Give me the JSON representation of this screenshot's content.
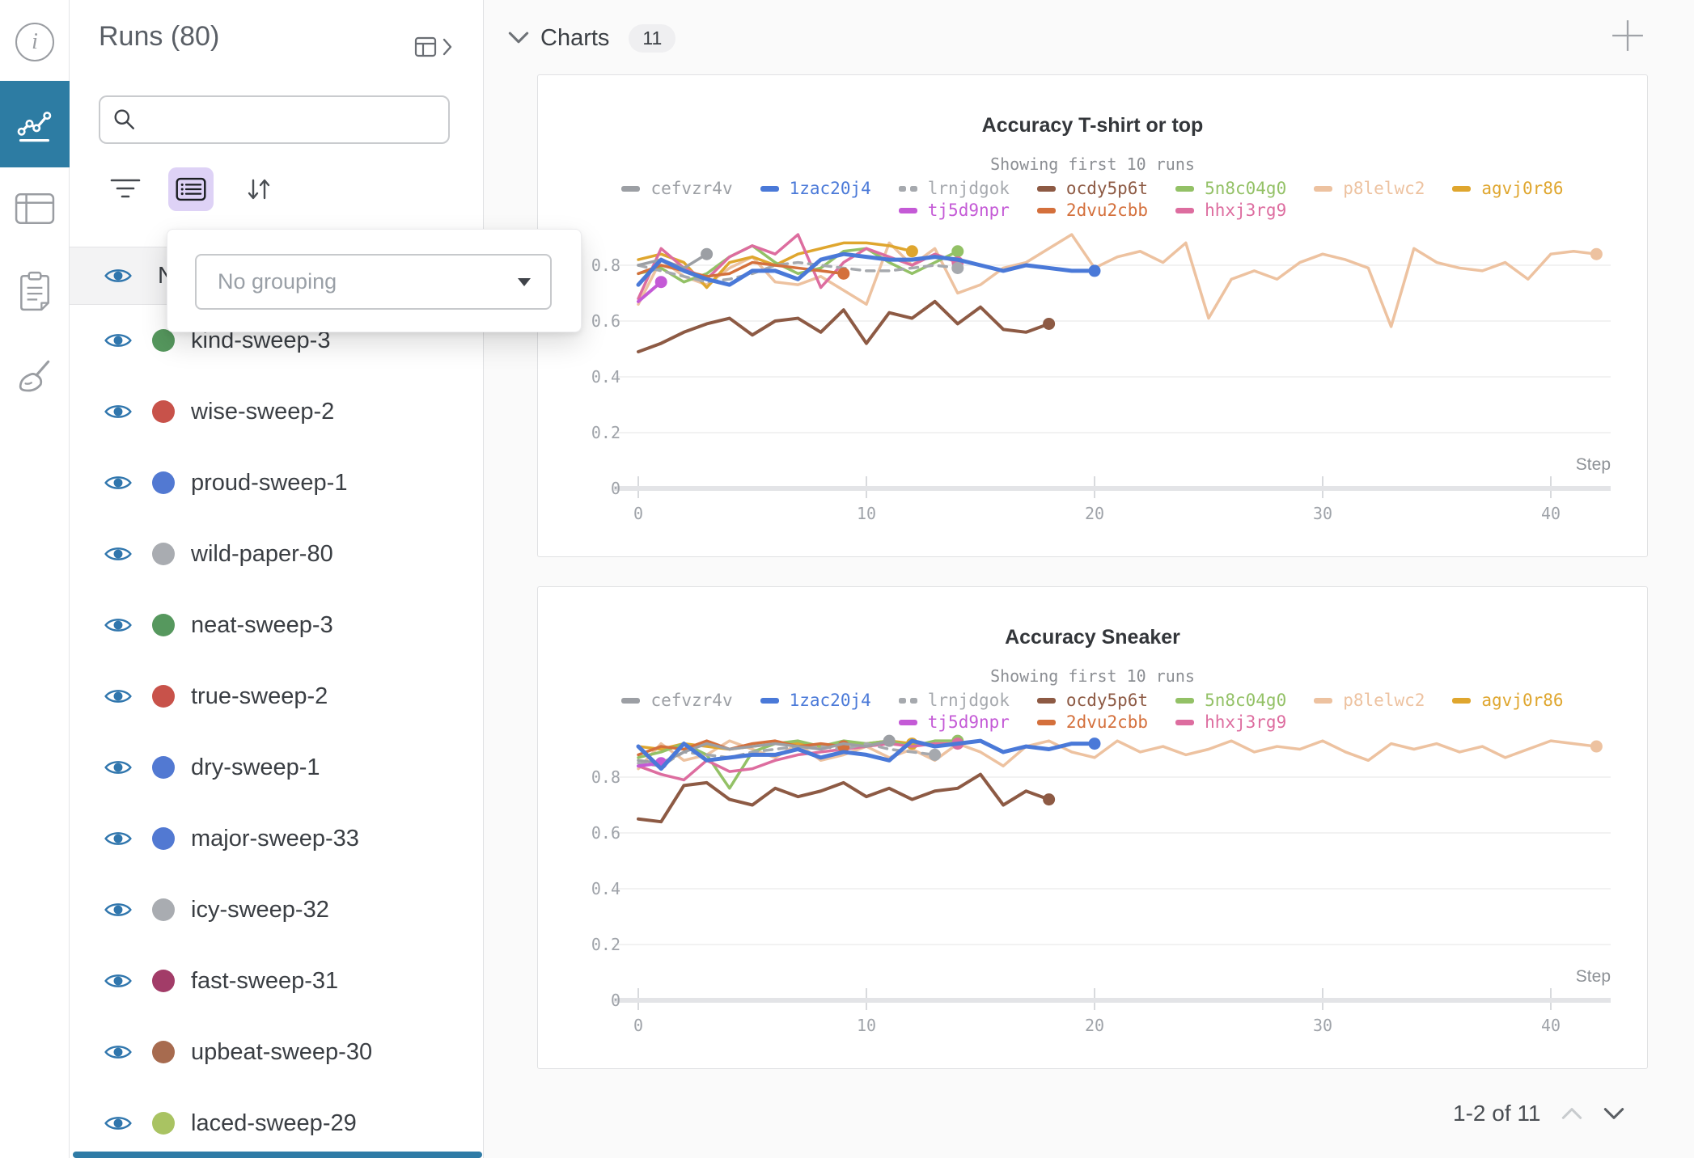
{
  "rail": {
    "active_color": "#2d7ca3",
    "icons": [
      "info-icon",
      "line-chart-icon",
      "table-icon",
      "clipboard-icon",
      "broom-icon"
    ]
  },
  "sidebar": {
    "title": "Runs (80)",
    "search": {
      "placeholder": "",
      "icon": "search-icon"
    },
    "toolbar": {
      "filter_icon": "filter-icon",
      "group_icon": "group-list-icon",
      "sort_icon": "sort-arrows-icon"
    },
    "grouping_popup": {
      "value": "No grouping",
      "caret_icon": "dropdown-caret-icon"
    },
    "header_row_label": "Name",
    "eye_color": "#3076ad",
    "runs": [
      {
        "name": "kind-sweep-3",
        "color": "#56985e"
      },
      {
        "name": "wise-sweep-2",
        "color": "#c8524a"
      },
      {
        "name": "proud-sweep-1",
        "color": "#5279d2"
      },
      {
        "name": "wild-paper-80",
        "color": "#a9acb1"
      },
      {
        "name": "neat-sweep-3",
        "color": "#56985e"
      },
      {
        "name": "true-sweep-2",
        "color": "#c8524a"
      },
      {
        "name": "dry-sweep-1",
        "color": "#5279d2"
      },
      {
        "name": "major-sweep-33",
        "color": "#5279d2"
      },
      {
        "name": "icy-sweep-32",
        "color": "#a9acb1"
      },
      {
        "name": "fast-sweep-31",
        "color": "#a23c68"
      },
      {
        "name": "upbeat-sweep-30",
        "color": "#a76b4f"
      },
      {
        "name": "laced-sweep-29",
        "color": "#a9c362"
      }
    ]
  },
  "main": {
    "section": {
      "title": "Charts",
      "count": "11"
    },
    "pagination": {
      "label": "1-2 of 11"
    }
  },
  "chart_data": [
    {
      "type": "line",
      "title": "Accuracy T-shirt or top",
      "subtitle": "Showing first 10 runs",
      "xlabel": "Step",
      "xlim": [
        0,
        42.6
      ],
      "ylim": [
        0,
        1
      ],
      "grid": true,
      "legend_position": "top",
      "yticks": [
        0,
        0.2,
        0.4,
        0.6,
        0.8
      ],
      "xticks": [
        0,
        10,
        20,
        30,
        40
      ],
      "legend_rows": [
        [
          "cefvzr4v",
          "1zac20j4",
          "lrnjdgok",
          "ocdy5p6t",
          "5n8c04g0",
          "p8lelwc2",
          "agvj0r86"
        ],
        [
          "tj5d9npr",
          "2dvu2cbb",
          "hhxj3rg9"
        ]
      ],
      "series": [
        {
          "name": "p8lelwc2",
          "color": "#edc2a0",
          "width": 3.5,
          "values": [
            0.66,
            0.82,
            0.76,
            0.73,
            0.79,
            0.83,
            0.74,
            0.73,
            0.76,
            0.71,
            0.66,
            0.88,
            0.8,
            0.86,
            0.7,
            0.73,
            0.79,
            0.81,
            0.86,
            0.91,
            0.79,
            0.83,
            0.85,
            0.81,
            0.88,
            0.61,
            0.75,
            0.78,
            0.75,
            0.81,
            0.84,
            0.82,
            0.79,
            0.58,
            0.86,
            0.81,
            0.79,
            0.78,
            0.81,
            0.75,
            0.84,
            0.85,
            0.84
          ]
        },
        {
          "name": "agvj0r86",
          "color": "#dfa62e",
          "width": 3.5,
          "values": [
            0.82,
            0.84,
            0.81,
            0.72,
            0.81,
            0.83,
            0.8,
            0.84,
            0.86,
            0.88,
            0.88,
            0.87,
            0.85
          ]
        },
        {
          "name": "5n8c04g0",
          "color": "#93c166",
          "width": 3.5,
          "values": [
            0.77,
            0.79,
            0.74,
            0.77,
            0.83,
            0.87,
            0.81,
            0.77,
            0.79,
            0.85,
            0.86,
            0.81,
            0.77,
            0.81,
            0.85
          ]
        },
        {
          "name": "hhxj3rg9",
          "color": "#dd6d9f",
          "width": 3.5,
          "values": [
            0.68,
            0.86,
            0.79,
            0.75,
            0.83,
            0.87,
            0.84,
            0.91,
            0.72,
            0.81,
            0.86,
            0.83,
            0.8,
            0.84,
            0.81
          ]
        },
        {
          "name": "lrnjdgok",
          "color": "#a6a9ae",
          "width": 3.5,
          "dashed": true,
          "values": [
            0.8,
            0.78,
            0.76,
            0.74,
            0.75,
            0.77,
            0.8,
            0.81,
            0.8,
            0.79,
            0.78,
            0.78,
            0.79,
            0.8,
            0.79
          ]
        },
        {
          "name": "2dvu2cbb",
          "color": "#d4703c",
          "width": 3.5,
          "values": [
            0.77,
            0.8,
            0.78,
            0.76,
            0.77,
            0.81,
            0.8,
            0.79,
            0.78,
            0.77
          ]
        },
        {
          "name": "cefvzr4v",
          "color": "#9c9fa4",
          "width": 3.5,
          "values": [
            0.8,
            0.82,
            0.79,
            0.84
          ]
        },
        {
          "name": "tj5d9npr",
          "color": "#c45ad6",
          "width": 4,
          "values": [
            0.67,
            0.74
          ]
        },
        {
          "name": "ocdy5p6t",
          "color": "#8d5a44",
          "width": 4,
          "values": [
            0.49,
            0.52,
            0.56,
            0.59,
            0.61,
            0.55,
            0.6,
            0.61,
            0.56,
            0.64,
            0.52,
            0.63,
            0.61,
            0.67,
            0.59,
            0.65,
            0.57,
            0.56,
            0.59
          ]
        },
        {
          "name": "1zac20j4",
          "color": "#4a79d8",
          "width": 5,
          "values": [
            0.73,
            0.82,
            0.78,
            0.75,
            0.73,
            0.78,
            0.78,
            0.75,
            0.82,
            0.84,
            0.83,
            0.82,
            0.82,
            0.83,
            0.82,
            0.8,
            0.78,
            0.8,
            0.79,
            0.78,
            0.78
          ]
        }
      ]
    },
    {
      "type": "line",
      "title": "Accuracy Sneaker",
      "subtitle": "Showing first 10 runs",
      "xlabel": "Step",
      "xlim": [
        0,
        42.6
      ],
      "ylim": [
        0,
        1
      ],
      "grid": true,
      "legend_position": "top",
      "yticks": [
        0,
        0.2,
        0.4,
        0.6,
        0.8
      ],
      "xticks": [
        0,
        10,
        20,
        30,
        40
      ],
      "legend_rows": [
        [
          "cefvzr4v",
          "1zac20j4",
          "lrnjdgok",
          "ocdy5p6t",
          "5n8c04g0",
          "p8lelwc2",
          "agvj0r86"
        ],
        [
          "tj5d9npr",
          "2dvu2cbb",
          "hhxj3rg9"
        ]
      ],
      "series": [
        {
          "name": "p8lelwc2",
          "color": "#edc2a0",
          "width": 3.5,
          "values": [
            0.83,
            0.92,
            0.86,
            0.88,
            0.93,
            0.9,
            0.87,
            0.92,
            0.86,
            0.88,
            0.91,
            0.87,
            0.9,
            0.86,
            0.92,
            0.89,
            0.84,
            0.91,
            0.93,
            0.89,
            0.87,
            0.93,
            0.89,
            0.91,
            0.88,
            0.9,
            0.93,
            0.89,
            0.91,
            0.9,
            0.93,
            0.89,
            0.86,
            0.92,
            0.9,
            0.92,
            0.89,
            0.91,
            0.87,
            0.9,
            0.93,
            0.92,
            0.91
          ]
        },
        {
          "name": "agvj0r86",
          "color": "#dfa62e",
          "width": 3.5,
          "values": [
            0.91,
            0.9,
            0.92,
            0.91,
            0.9,
            0.91,
            0.92,
            0.92,
            0.91,
            0.92,
            0.92,
            0.93,
            0.92
          ]
        },
        {
          "name": "5n8c04g0",
          "color": "#93c166",
          "width": 3.5,
          "values": [
            0.87,
            0.89,
            0.92,
            0.88,
            0.76,
            0.89,
            0.92,
            0.93,
            0.91,
            0.93,
            0.92,
            0.93,
            0.91,
            0.93,
            0.93
          ]
        },
        {
          "name": "hhxj3rg9",
          "color": "#dd6d9f",
          "width": 3.5,
          "values": [
            0.84,
            0.81,
            0.79,
            0.86,
            0.82,
            0.83,
            0.86,
            0.88,
            0.89,
            0.9,
            0.91,
            0.92,
            0.91,
            0.92,
            0.92
          ]
        },
        {
          "name": "lrnjdgok",
          "color": "#a6a9ae",
          "width": 3.5,
          "dashed": true,
          "values": [
            0.85,
            0.84,
            0.89,
            0.88,
            0.87,
            0.89,
            0.9,
            0.91,
            0.91,
            0.9,
            0.92,
            0.9,
            0.89,
            0.88
          ]
        },
        {
          "name": "2dvu2cbb",
          "color": "#d4703c",
          "width": 3.5,
          "values": [
            0.88,
            0.91,
            0.9,
            0.93,
            0.9,
            0.92,
            0.93,
            0.91,
            0.92,
            0.91
          ]
        },
        {
          "name": "cefvzr4v",
          "color": "#9c9fa4",
          "width": 3.5,
          "values": [
            0.86,
            0.85,
            0.89,
            0.92,
            0.9,
            0.91,
            0.92,
            0.91,
            0.9,
            0.92,
            0.91,
            0.93
          ]
        },
        {
          "name": "tj5d9npr",
          "color": "#c45ad6",
          "width": 4,
          "values": [
            0.84,
            0.85
          ]
        },
        {
          "name": "ocdy5p6t",
          "color": "#8d5a44",
          "width": 4,
          "values": [
            0.65,
            0.64,
            0.77,
            0.78,
            0.72,
            0.7,
            0.76,
            0.73,
            0.75,
            0.78,
            0.73,
            0.76,
            0.72,
            0.75,
            0.76,
            0.81,
            0.7,
            0.75,
            0.72
          ]
        },
        {
          "name": "1zac20j4",
          "color": "#4a79d8",
          "width": 5,
          "values": [
            0.91,
            0.83,
            0.92,
            0.86,
            0.87,
            0.88,
            0.88,
            0.9,
            0.87,
            0.89,
            0.88,
            0.86,
            0.93,
            0.91,
            0.92,
            0.93,
            0.89,
            0.91,
            0.9,
            0.92,
            0.92
          ]
        }
      ]
    }
  ]
}
